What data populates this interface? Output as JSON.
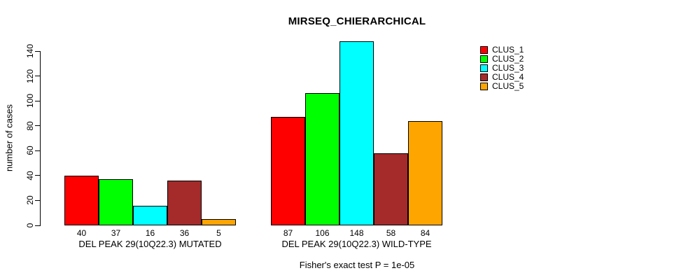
{
  "chart_data": {
    "type": "bar",
    "title": "MIRSEQ_CHIERARCHICAL",
    "ylabel": "number of cases",
    "ylim": [
      0,
      148
    ],
    "yticks": [
      0,
      20,
      40,
      60,
      80,
      100,
      120,
      140
    ],
    "grid": false,
    "legend_position": "right",
    "series": [
      {
        "name": "CLUS_1",
        "color": "#FF0000"
      },
      {
        "name": "CLUS_2",
        "color": "#00FF00"
      },
      {
        "name": "CLUS_3",
        "color": "#00FFFF"
      },
      {
        "name": "CLUS_4",
        "color": "#A52A2A"
      },
      {
        "name": "CLUS_5",
        "color": "#FFA500"
      }
    ],
    "groups": [
      {
        "label": "DEL PEAK 29(10Q22.3) MUTATED",
        "values": [
          40,
          37,
          16,
          36,
          5
        ]
      },
      {
        "label": "DEL PEAK 29(10Q22.3) WILD-TYPE",
        "values": [
          87,
          106,
          148,
          58,
          84
        ]
      }
    ],
    "footer": "Fisher's exact test P = 1e-05"
  }
}
